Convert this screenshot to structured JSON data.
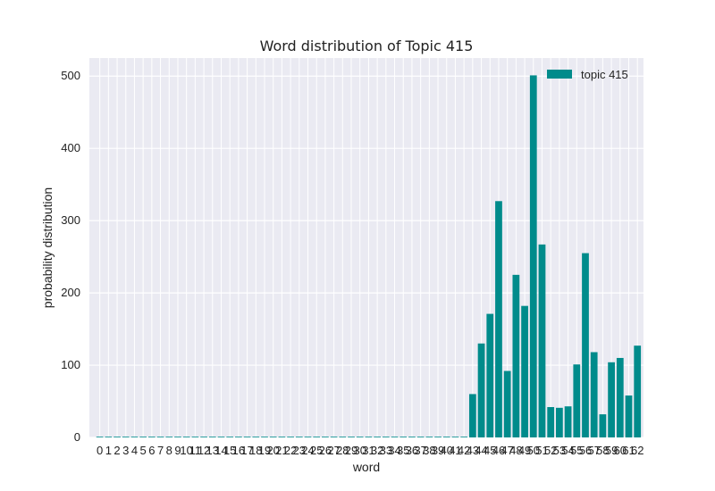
{
  "chart_data": {
    "type": "bar",
    "title": "Word distribution of Topic 415",
    "xlabel": "word",
    "ylabel": "probability distribution",
    "legend": {
      "label": "topic 415",
      "placement": "top-right"
    },
    "color": "#008b8b",
    "ylim": [
      0,
      525
    ],
    "yticks": [
      0,
      100,
      200,
      300,
      400,
      500
    ],
    "grid": true,
    "categories": [
      0,
      1,
      2,
      3,
      4,
      5,
      6,
      7,
      8,
      9,
      10,
      11,
      12,
      13,
      14,
      15,
      16,
      17,
      18,
      19,
      20,
      21,
      22,
      23,
      24,
      25,
      26,
      27,
      28,
      29,
      30,
      31,
      32,
      33,
      34,
      35,
      36,
      37,
      38,
      39,
      40,
      41,
      42,
      43,
      44,
      45,
      46,
      47,
      48,
      49,
      50,
      51,
      52,
      53,
      54,
      55,
      56,
      57,
      58,
      59,
      60,
      61,
      62
    ],
    "values": [
      1,
      1,
      1,
      1,
      1,
      1,
      1,
      1,
      1,
      1,
      1,
      1,
      1,
      1,
      1,
      1,
      1,
      1,
      1,
      1,
      1,
      1,
      1,
      1,
      1,
      1,
      1,
      1,
      1,
      1,
      1,
      1,
      1,
      1,
      1,
      1,
      1,
      1,
      1,
      1,
      1,
      1,
      1,
      60,
      130,
      171,
      327,
      92,
      225,
      182,
      501,
      267,
      42,
      41,
      43,
      101,
      255,
      118,
      32,
      104,
      110,
      58,
      127
    ]
  }
}
